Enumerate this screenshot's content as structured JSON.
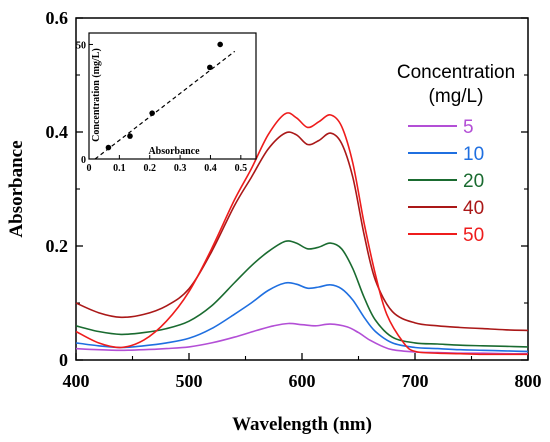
{
  "chart_data": [
    {
      "type": "line",
      "xlabel": "Wavelength (nm)",
      "ylabel": "Absorbance",
      "xlim": [
        400,
        800
      ],
      "ylim": [
        0,
        0.6
      ],
      "x_ticks": [
        "400",
        "500",
        "600",
        "700",
        "800"
      ],
      "y_ticks": [
        "0",
        "0.2",
        "0.4",
        "0.6"
      ],
      "legend": {
        "title_line1": "Concentration",
        "title_line2": "(mg/L)",
        "placement": "right"
      },
      "series": [
        {
          "name": "5",
          "color": "#b34fd6",
          "points": [
            [
              400,
              0.02
            ],
            [
              420,
              0.018
            ],
            [
              440,
              0.017
            ],
            [
              460,
              0.018
            ],
            [
              480,
              0.02
            ],
            [
              500,
              0.023
            ],
            [
              520,
              0.03
            ],
            [
              540,
              0.04
            ],
            [
              560,
              0.052
            ],
            [
              575,
              0.06
            ],
            [
              588,
              0.064
            ],
            [
              600,
              0.062
            ],
            [
              612,
              0.06
            ],
            [
              625,
              0.063
            ],
            [
              640,
              0.058
            ],
            [
              650,
              0.048
            ],
            [
              660,
              0.035
            ],
            [
              670,
              0.025
            ],
            [
              680,
              0.018
            ],
            [
              700,
              0.014
            ],
            [
              720,
              0.013
            ],
            [
              740,
              0.012
            ],
            [
              760,
              0.012
            ],
            [
              780,
              0.011
            ],
            [
              800,
              0.011
            ]
          ]
        },
        {
          "name": "10",
          "color": "#1f6fe0",
          "points": [
            [
              400,
              0.03
            ],
            [
              420,
              0.025
            ],
            [
              440,
              0.022
            ],
            [
              460,
              0.025
            ],
            [
              480,
              0.03
            ],
            [
              500,
              0.038
            ],
            [
              520,
              0.055
            ],
            [
              540,
              0.08
            ],
            [
              555,
              0.1
            ],
            [
              570,
              0.122
            ],
            [
              585,
              0.135
            ],
            [
              595,
              0.133
            ],
            [
              605,
              0.126
            ],
            [
              615,
              0.128
            ],
            [
              625,
              0.132
            ],
            [
              635,
              0.125
            ],
            [
              645,
              0.105
            ],
            [
              655,
              0.075
            ],
            [
              665,
              0.05
            ],
            [
              680,
              0.03
            ],
            [
              700,
              0.022
            ],
            [
              720,
              0.02
            ],
            [
              740,
              0.018
            ],
            [
              760,
              0.017
            ],
            [
              780,
              0.016
            ],
            [
              800,
              0.015
            ]
          ]
        },
        {
          "name": "20",
          "color": "#1a6b30",
          "points": [
            [
              400,
              0.06
            ],
            [
              420,
              0.05
            ],
            [
              440,
              0.045
            ],
            [
              460,
              0.048
            ],
            [
              480,
              0.055
            ],
            [
              500,
              0.068
            ],
            [
              520,
              0.095
            ],
            [
              540,
              0.135
            ],
            [
              555,
              0.165
            ],
            [
              570,
              0.19
            ],
            [
              585,
              0.208
            ],
            [
              595,
              0.205
            ],
            [
              605,
              0.195
            ],
            [
              615,
              0.198
            ],
            [
              625,
              0.205
            ],
            [
              635,
              0.195
            ],
            [
              645,
              0.16
            ],
            [
              655,
              0.11
            ],
            [
              665,
              0.07
            ],
            [
              680,
              0.04
            ],
            [
              700,
              0.03
            ],
            [
              720,
              0.028
            ],
            [
              740,
              0.026
            ],
            [
              760,
              0.025
            ],
            [
              780,
              0.024
            ],
            [
              800,
              0.023
            ]
          ]
        },
        {
          "name": "40",
          "color": "#aa1818",
          "points": [
            [
              400,
              0.1
            ],
            [
              420,
              0.083
            ],
            [
              440,
              0.075
            ],
            [
              460,
              0.08
            ],
            [
              480,
              0.095
            ],
            [
              500,
              0.125
            ],
            [
              520,
              0.19
            ],
            [
              540,
              0.27
            ],
            [
              555,
              0.32
            ],
            [
              570,
              0.37
            ],
            [
              585,
              0.398
            ],
            [
              595,
              0.395
            ],
            [
              605,
              0.378
            ],
            [
              615,
              0.385
            ],
            [
              625,
              0.398
            ],
            [
              635,
              0.38
            ],
            [
              645,
              0.32
            ],
            [
              655,
              0.22
            ],
            [
              665,
              0.14
            ],
            [
              680,
              0.085
            ],
            [
              700,
              0.065
            ],
            [
              720,
              0.06
            ],
            [
              740,
              0.057
            ],
            [
              760,
              0.055
            ],
            [
              780,
              0.053
            ],
            [
              800,
              0.052
            ]
          ]
        },
        {
          "name": "50",
          "color": "#ee1c1c",
          "points": [
            [
              400,
              0.05
            ],
            [
              420,
              0.03
            ],
            [
              440,
              0.022
            ],
            [
              460,
              0.035
            ],
            [
              480,
              0.068
            ],
            [
              500,
              0.12
            ],
            [
              520,
              0.195
            ],
            [
              540,
              0.28
            ],
            [
              555,
              0.335
            ],
            [
              570,
              0.395
            ],
            [
              585,
              0.432
            ],
            [
              595,
              0.425
            ],
            [
              605,
              0.408
            ],
            [
              615,
              0.418
            ],
            [
              625,
              0.43
            ],
            [
              635,
              0.41
            ],
            [
              645,
              0.345
            ],
            [
              655,
              0.24
            ],
            [
              665,
              0.15
            ],
            [
              675,
              0.08
            ],
            [
              690,
              0.03
            ],
            [
              700,
              0.015
            ],
            [
              720,
              0.012
            ],
            [
              740,
              0.011
            ],
            [
              760,
              0.01
            ],
            [
              780,
              0.01
            ],
            [
              800,
              0.01
            ]
          ]
        }
      ]
    },
    {
      "type": "scatter",
      "xlabel": "Absorbance",
      "ylabel": "Concentration (mg/L)",
      "xlim": [
        0,
        0.55
      ],
      "ylim": [
        0,
        55
      ],
      "x_ticks": [
        "0",
        "0.1",
        "0.2",
        "0.3",
        "0.4",
        "0.5"
      ],
      "y_ticks": [
        "0",
        "50"
      ],
      "points": [
        [
          0.064,
          5
        ],
        [
          0.135,
          10
        ],
        [
          0.208,
          20
        ],
        [
          0.398,
          40
        ],
        [
          0.432,
          50
        ]
      ],
      "fit_line": [
        [
          0.02,
          0
        ],
        [
          0.48,
          47
        ]
      ]
    }
  ]
}
